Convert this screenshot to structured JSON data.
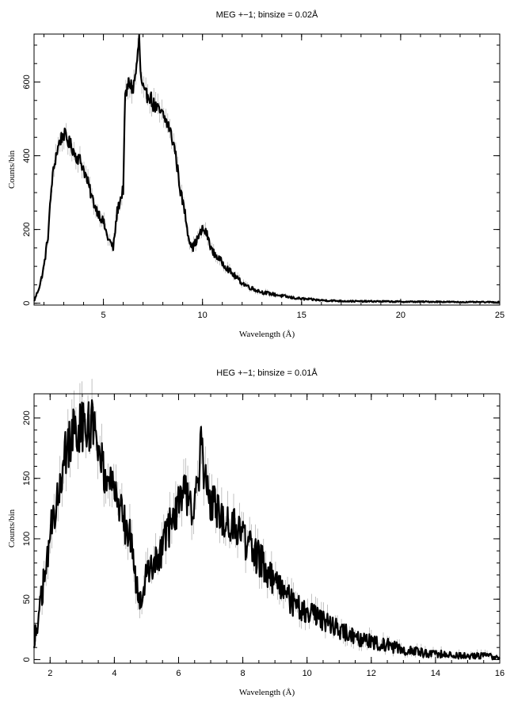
{
  "chart_data": [
    {
      "id": "meg",
      "type": "line",
      "title": "MEG +−1; binsize = 0.02Å",
      "xlabel": "Wavelength (Å)",
      "ylabel": "Counts/bin",
      "xlim": [
        1.5,
        25
      ],
      "ylim": [
        -5,
        730
      ],
      "xticks": [
        5,
        10,
        15,
        20,
        25
      ],
      "yticks": [
        0,
        200,
        400,
        600
      ],
      "x_minor_step": 1,
      "y_minor_step": 50,
      "grid": false,
      "error_bars": true,
      "series": [
        {
          "values_x": [
            1.5,
            1.8,
            2.0,
            2.2,
            2.4,
            2.6,
            2.8,
            3.0,
            3.2,
            3.4,
            3.6,
            3.8,
            4.0,
            4.2,
            4.4,
            4.6,
            4.8,
            5.0,
            5.2,
            5.4,
            5.5,
            5.7,
            5.9,
            6.0,
            6.1,
            6.3,
            6.5,
            6.7,
            6.8,
            6.9,
            7.1,
            7.3,
            7.5,
            7.8,
            8.0,
            8.3,
            8.6,
            8.9,
            9.1,
            9.3,
            9.5,
            9.7,
            10.0,
            10.2,
            10.5,
            11.0,
            11.5,
            12.0,
            12.5,
            13.0,
            13.5,
            14.0,
            14.5,
            15.0,
            15.5,
            16.0,
            17.0,
            18.0,
            19.0,
            20.0,
            21.0,
            22.0,
            23.0,
            24.0,
            25.0
          ],
          "values_y": [
            5,
            50,
            100,
            180,
            330,
            400,
            440,
            460,
            440,
            425,
            400,
            390,
            365,
            330,
            290,
            260,
            240,
            220,
            180,
            160,
            150,
            250,
            290,
            310,
            560,
            600,
            580,
            650,
            720,
            600,
            560,
            570,
            540,
            520,
            510,
            480,
            420,
            300,
            250,
            180,
            150,
            170,
            200,
            190,
            140,
            110,
            80,
            55,
            40,
            30,
            25,
            20,
            15,
            12,
            10,
            8,
            6,
            5,
            5,
            4,
            4,
            4,
            3,
            3,
            3
          ]
        }
      ]
    },
    {
      "id": "heg",
      "type": "line",
      "title": "HEG +−1; binsize = 0.01Å",
      "xlabel": "Wavelength (Å)",
      "ylabel": "Counts/bin",
      "xlim": [
        1.5,
        16
      ],
      "ylim": [
        -3,
        220
      ],
      "xticks": [
        2,
        4,
        6,
        8,
        10,
        12,
        14,
        16
      ],
      "yticks": [
        0,
        50,
        100,
        150,
        200
      ],
      "x_minor_step": 0.5,
      "y_minor_step": 10,
      "grid": false,
      "error_bars": true,
      "series": [
        {
          "values_x": [
            1.5,
            1.7,
            1.9,
            2.1,
            2.3,
            2.5,
            2.7,
            2.9,
            3.1,
            3.3,
            3.5,
            3.7,
            3.9,
            4.1,
            4.3,
            4.5,
            4.7,
            4.8,
            5.0,
            5.2,
            5.4,
            5.6,
            5.8,
            6.0,
            6.2,
            6.4,
            6.6,
            6.7,
            6.8,
            7.0,
            7.2,
            7.5,
            7.8,
            8.0,
            8.3,
            8.6,
            9.0,
            9.3,
            9.6,
            10.0,
            10.3,
            10.6,
            11.0,
            11.5,
            12.0,
            12.5,
            13.0,
            13.5,
            14.0,
            14.5,
            15.0,
            15.5,
            16.0
          ],
          "values_y": [
            15,
            45,
            85,
            120,
            150,
            175,
            185,
            190,
            195,
            195,
            180,
            155,
            140,
            130,
            115,
            100,
            60,
            45,
            70,
            75,
            85,
            100,
            115,
            130,
            135,
            125,
            140,
            175,
            155,
            130,
            125,
            115,
            110,
            100,
            90,
            80,
            65,
            55,
            45,
            40,
            35,
            30,
            25,
            18,
            15,
            12,
            8,
            6,
            5,
            4,
            3,
            3,
            2
          ]
        }
      ]
    }
  ]
}
